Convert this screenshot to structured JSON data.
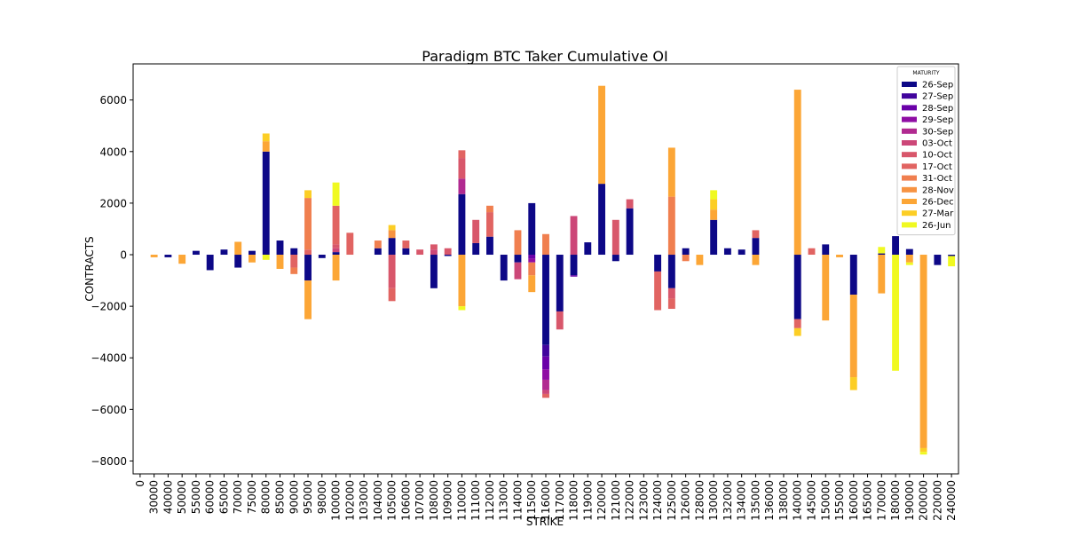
{
  "chart_data": {
    "type": "bar",
    "stacked": true,
    "title": "Paradigm BTC Taker Cumulative OI",
    "xlabel": "STRIKE",
    "ylabel": "CONTRACTS",
    "ylim": [
      -8500,
      7400
    ],
    "yticks": [
      -8000,
      -6000,
      -4000,
      -2000,
      0,
      2000,
      4000,
      6000
    ],
    "grid": false,
    "legend": {
      "title": "MATURITY",
      "position": "top-right"
    },
    "categories": [
      "0",
      "30000",
      "40000",
      "50000",
      "55000",
      "60000",
      "65000",
      "70000",
      "75000",
      "80000",
      "85000",
      "90000",
      "95000",
      "98000",
      "100000",
      "102000",
      "103000",
      "104000",
      "105000",
      "106000",
      "107000",
      "108000",
      "109000",
      "110000",
      "111000",
      "112000",
      "113000",
      "114000",
      "115000",
      "116000",
      "117000",
      "118000",
      "119000",
      "120000",
      "121000",
      "122000",
      "123000",
      "124000",
      "125000",
      "126000",
      "128000",
      "130000",
      "132000",
      "134000",
      "135000",
      "136000",
      "138000",
      "140000",
      "145000",
      "150000",
      "155000",
      "160000",
      "165000",
      "170000",
      "180000",
      "190000",
      "200000",
      "220000",
      "240000"
    ],
    "series": [
      {
        "name": "26-Sep",
        "color": "#0d0887",
        "values": [
          0,
          0,
          -100,
          0,
          150,
          -600,
          200,
          -500,
          150,
          4000,
          550,
          250,
          -1000,
          -130,
          100,
          0,
          0,
          250,
          650,
          250,
          0,
          -1300,
          -50,
          2350,
          450,
          700,
          -1000,
          -300,
          2000,
          -3500,
          -2200,
          -800,
          480,
          2750,
          -250,
          1800,
          0,
          -650,
          -1300,
          250,
          0,
          1350,
          250,
          200,
          650,
          0,
          0,
          -2500,
          0,
          400,
          0,
          -1550,
          0,
          50,
          720,
          220,
          0,
          -400,
          -50
        ]
      },
      {
        "name": "27-Sep",
        "color": "#41049d",
        "values": [
          0,
          0,
          0,
          0,
          0,
          0,
          0,
          0,
          0,
          0,
          0,
          0,
          0,
          0,
          0,
          0,
          0,
          0,
          0,
          0,
          0,
          0,
          0,
          0,
          0,
          0,
          0,
          0,
          0,
          -450,
          0,
          0,
          0,
          0,
          0,
          0,
          0,
          0,
          0,
          0,
          0,
          0,
          0,
          0,
          0,
          0,
          0,
          0,
          0,
          0,
          0,
          0,
          0,
          0,
          0,
          0,
          0,
          0,
          0
        ]
      },
      {
        "name": "28-Sep",
        "color": "#6a00a8",
        "values": [
          0,
          0,
          0,
          0,
          0,
          0,
          0,
          0,
          0,
          0,
          0,
          0,
          0,
          0,
          0,
          0,
          0,
          0,
          0,
          0,
          0,
          0,
          0,
          0,
          0,
          0,
          0,
          0,
          -150,
          -500,
          0,
          -50,
          0,
          0,
          0,
          0,
          0,
          0,
          0,
          0,
          0,
          0,
          0,
          0,
          0,
          0,
          0,
          0,
          0,
          0,
          0,
          0,
          0,
          0,
          0,
          0,
          0,
          0,
          0
        ]
      },
      {
        "name": "29-Sep",
        "color": "#8f0da4",
        "values": [
          0,
          0,
          0,
          0,
          0,
          0,
          0,
          0,
          0,
          0,
          0,
          0,
          0,
          0,
          0,
          0,
          0,
          0,
          0,
          0,
          0,
          0,
          0,
          0,
          0,
          0,
          0,
          0,
          -150,
          -400,
          0,
          0,
          0,
          0,
          0,
          0,
          0,
          0,
          0,
          0,
          0,
          0,
          0,
          0,
          0,
          0,
          0,
          0,
          0,
          0,
          0,
          0,
          0,
          0,
          0,
          0,
          0,
          0,
          0
        ]
      },
      {
        "name": "30-Sep",
        "color": "#b12a90",
        "values": [
          0,
          0,
          0,
          0,
          0,
          0,
          0,
          0,
          0,
          0,
          0,
          0,
          0,
          0,
          0,
          0,
          0,
          0,
          0,
          0,
          0,
          0,
          0,
          600,
          0,
          0,
          0,
          0,
          0,
          -400,
          0,
          0,
          0,
          0,
          0,
          0,
          0,
          0,
          0,
          0,
          0,
          0,
          0,
          0,
          0,
          0,
          0,
          0,
          0,
          0,
          0,
          0,
          0,
          0,
          0,
          0,
          0,
          0,
          0
        ]
      },
      {
        "name": "03-Oct",
        "color": "#cc4778",
        "values": [
          0,
          0,
          0,
          0,
          0,
          0,
          0,
          0,
          0,
          0,
          0,
          0,
          0,
          0,
          150,
          0,
          0,
          0,
          0,
          0,
          0,
          200,
          0,
          0,
          0,
          0,
          0,
          -650,
          0,
          -150,
          0,
          1500,
          0,
          0,
          0,
          0,
          0,
          0,
          0,
          0,
          0,
          0,
          0,
          0,
          0,
          0,
          0,
          0,
          0,
          0,
          0,
          0,
          0,
          0,
          0,
          0,
          0,
          0,
          0
        ]
      },
      {
        "name": "10-Oct",
        "color": "#d8576b",
        "values": [
          0,
          0,
          0,
          0,
          0,
          0,
          0,
          0,
          0,
          0,
          0,
          0,
          0,
          0,
          150,
          0,
          0,
          0,
          -1300,
          0,
          200,
          200,
          250,
          800,
          900,
          0,
          0,
          0,
          0,
          0,
          -700,
          0,
          0,
          0,
          1350,
          350,
          0,
          0,
          -400,
          0,
          0,
          0,
          0,
          0,
          0,
          0,
          0,
          0,
          0,
          0,
          0,
          0,
          0,
          0,
          0,
          0,
          0,
          0,
          0
        ]
      },
      {
        "name": "17-Oct",
        "color": "#e16462",
        "values": [
          0,
          0,
          0,
          0,
          0,
          0,
          0,
          0,
          0,
          0,
          0,
          -500,
          200,
          0,
          1500,
          850,
          0,
          0,
          -500,
          300,
          0,
          0,
          0,
          300,
          0,
          950,
          0,
          0,
          0,
          -150,
          0,
          0,
          0,
          0,
          0,
          0,
          0,
          -1500,
          -400,
          0,
          0,
          0,
          0,
          0,
          300,
          0,
          0,
          -350,
          250,
          0,
          0,
          0,
          0,
          0,
          0,
          0,
          0,
          0,
          0
        ]
      },
      {
        "name": "31-Oct",
        "color": "#f07f4f",
        "values": [
          0,
          0,
          0,
          0,
          0,
          0,
          0,
          0,
          0,
          0,
          0,
          -250,
          2000,
          0,
          0,
          0,
          0,
          300,
          0,
          0,
          0,
          0,
          0,
          0,
          0,
          250,
          0,
          950,
          -500,
          800,
          0,
          0,
          0,
          0,
          0,
          0,
          0,
          0,
          2250,
          -250,
          0,
          0,
          0,
          0,
          0,
          0,
          0,
          0,
          0,
          0,
          0,
          0,
          0,
          0,
          0,
          0,
          0,
          0,
          0
        ]
      },
      {
        "name": "28-Nov",
        "color": "#f79342",
        "values": [
          0,
          0,
          0,
          0,
          0,
          0,
          0,
          0,
          0,
          0,
          0,
          0,
          0,
          0,
          0,
          0,
          0,
          0,
          300,
          0,
          0,
          0,
          0,
          0,
          0,
          0,
          0,
          0,
          0,
          0,
          0,
          0,
          0,
          0,
          0,
          0,
          0,
          0,
          0,
          0,
          0,
          0,
          0,
          0,
          0,
          0,
          0,
          0,
          0,
          0,
          0,
          0,
          0,
          0,
          0,
          0,
          0,
          0,
          0
        ]
      },
      {
        "name": "26-Dec",
        "color": "#fca636",
        "values": [
          0,
          -100,
          0,
          -350,
          0,
          0,
          0,
          500,
          -300,
          400,
          -550,
          0,
          -1500,
          0,
          -1000,
          0,
          0,
          0,
          0,
          0,
          0,
          0,
          0,
          -2000,
          0,
          0,
          0,
          0,
          -650,
          0,
          0,
          0,
          0,
          3800,
          0,
          0,
          0,
          0,
          1900,
          0,
          -400,
          400,
          0,
          0,
          -400,
          0,
          0,
          6400,
          0,
          -2550,
          -100,
          -3200,
          0,
          -1500,
          0,
          -300,
          -7500,
          0,
          0
        ]
      },
      {
        "name": "27-Mar",
        "color": "#fcce25",
        "values": [
          0,
          0,
          0,
          0,
          0,
          0,
          0,
          0,
          0,
          300,
          0,
          0,
          300,
          0,
          0,
          0,
          0,
          0,
          200,
          0,
          0,
          0,
          0,
          0,
          0,
          0,
          0,
          0,
          0,
          0,
          0,
          0,
          0,
          0,
          0,
          0,
          0,
          0,
          0,
          0,
          0,
          400,
          0,
          0,
          0,
          0,
          0,
          -300,
          0,
          0,
          0,
          -500,
          0,
          0,
          0,
          0,
          -150,
          0,
          0
        ]
      },
      {
        "name": "26-Jun",
        "color": "#f0f921",
        "values": [
          0,
          0,
          0,
          0,
          0,
          0,
          0,
          0,
          0,
          -200,
          0,
          0,
          0,
          0,
          900,
          0,
          0,
          0,
          0,
          0,
          0,
          0,
          0,
          -150,
          0,
          0,
          0,
          0,
          0,
          0,
          0,
          0,
          0,
          0,
          0,
          0,
          0,
          0,
          0,
          0,
          0,
          350,
          0,
          0,
          0,
          0,
          0,
          0,
          0,
          0,
          0,
          0,
          0,
          250,
          -4500,
          -100,
          -100,
          0,
          -400
        ]
      }
    ]
  }
}
